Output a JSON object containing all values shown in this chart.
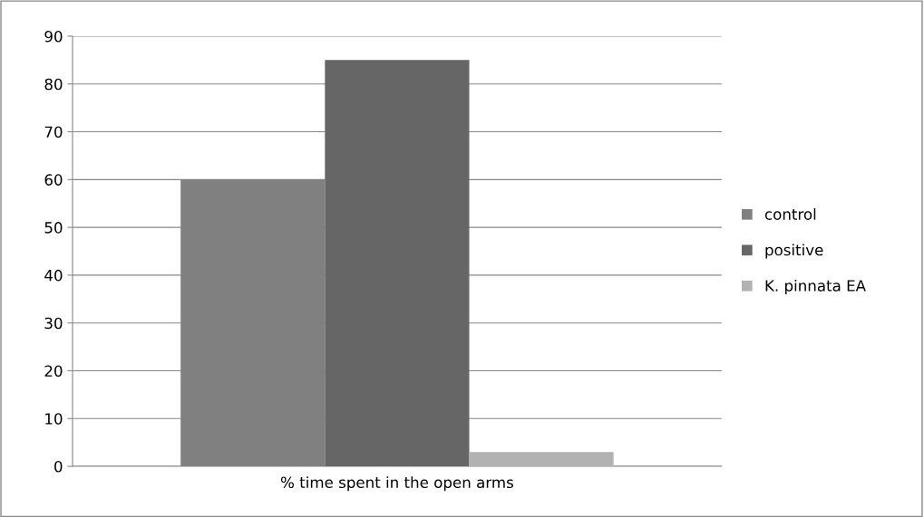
{
  "chart_data": {
    "type": "bar",
    "categories": [
      "% time spent in the open arms"
    ],
    "series": [
      {
        "name": "control",
        "color": "#808080",
        "values": [
          60
        ]
      },
      {
        "name": "positive",
        "color": "#666666",
        "values": [
          85
        ]
      },
      {
        "name": "K. pinnata EA",
        "color": "#b2b2b2",
        "values": [
          3
        ]
      }
    ],
    "ylim": [
      0,
      90
    ],
    "yticks": [
      0,
      10,
      20,
      30,
      40,
      50,
      60,
      70,
      80,
      90
    ],
    "grid": "y",
    "legend": "right"
  }
}
